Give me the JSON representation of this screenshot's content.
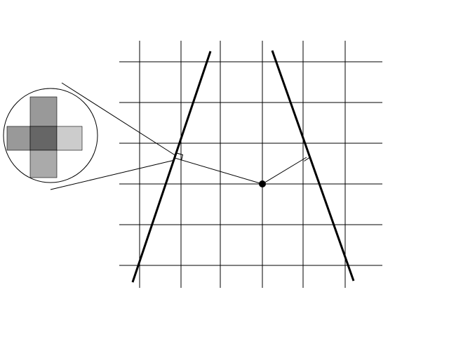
{
  "diagram": {
    "background_color": "#ffffff",
    "line_color": "#000000",
    "magnifier_squares": [
      {
        "name": "top",
        "color": "#999999"
      },
      {
        "name": "left",
        "color": "#999999"
      },
      {
        "name": "center",
        "color": "#666666"
      },
      {
        "name": "right",
        "color": "#cccccc"
      },
      {
        "name": "bottom",
        "color": "#aaaaaa"
      }
    ]
  }
}
